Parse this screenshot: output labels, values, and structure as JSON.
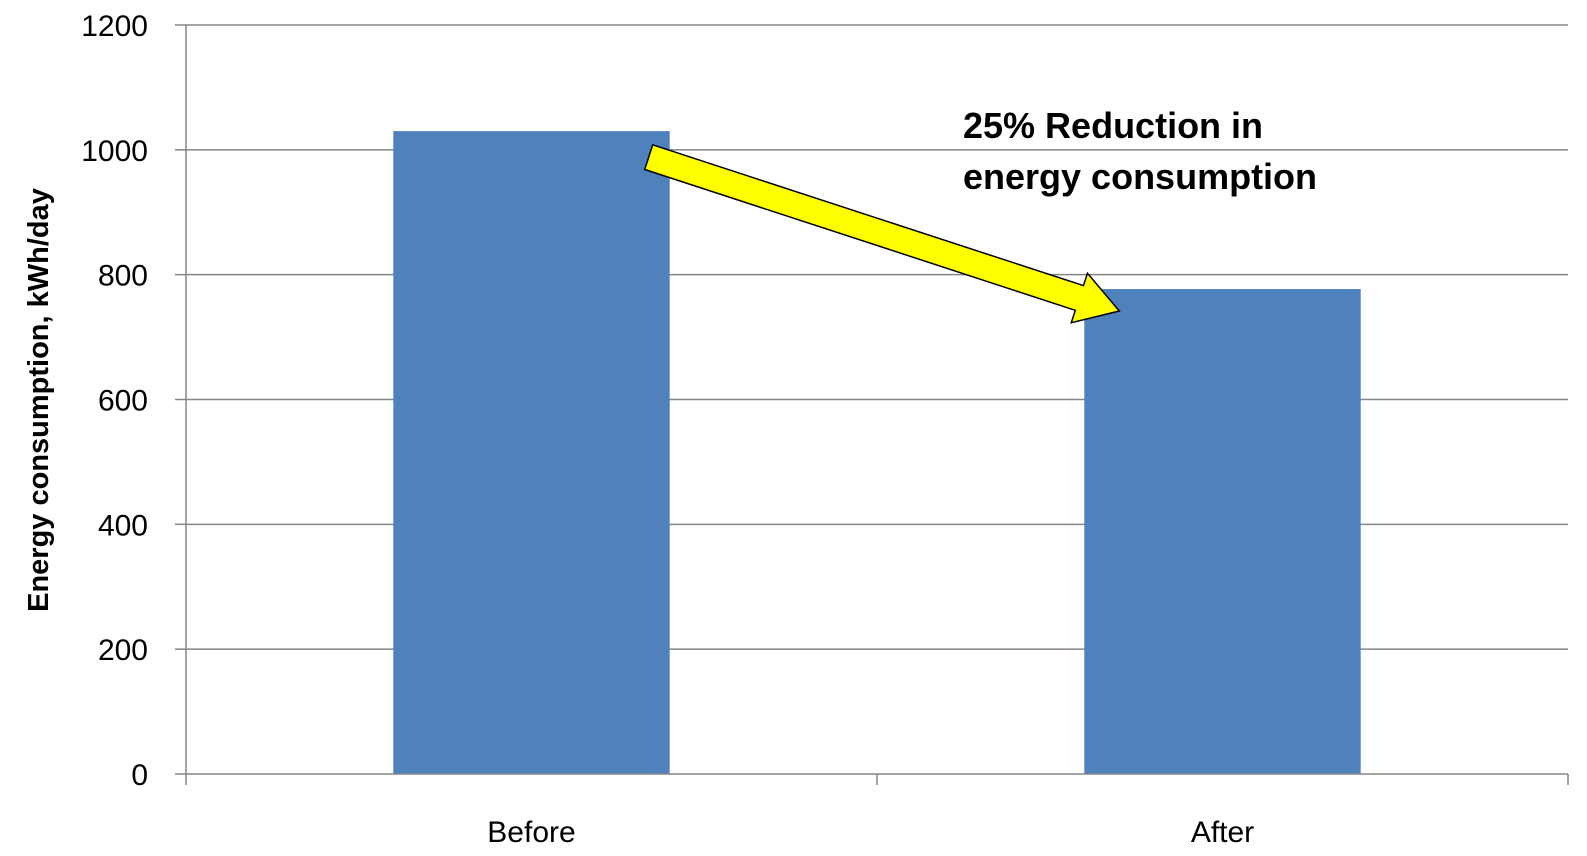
{
  "chart_data": {
    "type": "bar",
    "categories": [
      "Before",
      "After"
    ],
    "values": [
      1030,
      777
    ],
    "xlabel": "",
    "ylabel": "Energy consumption, kWh/day",
    "ylim": [
      0,
      1200
    ],
    "yticks": [
      0,
      200,
      400,
      600,
      800,
      1000,
      1200
    ],
    "grid": true,
    "legend": "none",
    "annotation": {
      "lines": [
        "25% Reduction in",
        "energy consumption"
      ]
    },
    "colors": {
      "bar": "#4f81bd",
      "grid": "#868686",
      "arrow_fill": "#ffff00",
      "arrow_stroke": "#000000"
    }
  }
}
